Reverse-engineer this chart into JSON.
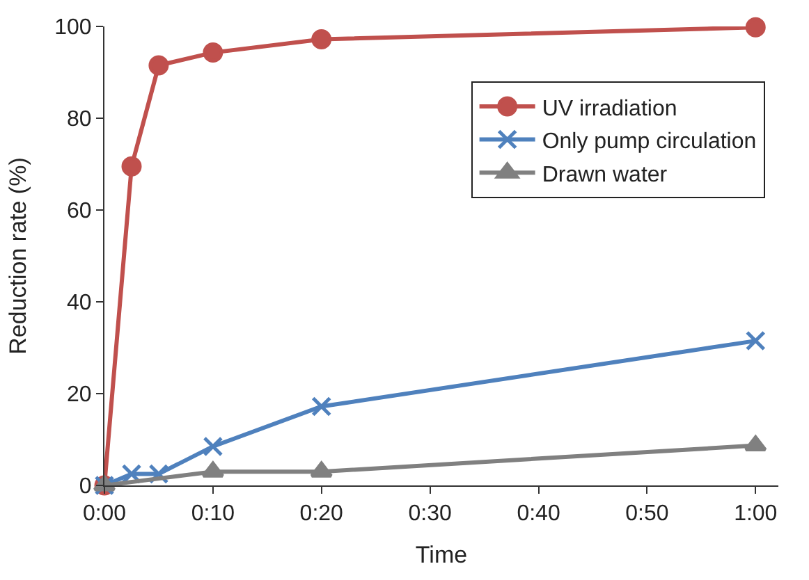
{
  "chart_data": {
    "type": "line",
    "xlabel": "Time",
    "ylabel": "Reduction rate (%)",
    "xlim": [
      0,
      1.035
    ],
    "xticks": [
      {
        "value": 0,
        "label": "0:00"
      },
      {
        "value": 0.1667,
        "label": "0:10"
      },
      {
        "value": 0.3333,
        "label": "0:20"
      },
      {
        "value": 0.5,
        "label": "0:30"
      },
      {
        "value": 0.6667,
        "label": "0:40"
      },
      {
        "value": 0.8333,
        "label": "0:50"
      },
      {
        "value": 1,
        "label": "1:00"
      }
    ],
    "ylim": [
      0,
      100
    ],
    "yticks": [
      0,
      20,
      40,
      60,
      80,
      100
    ],
    "legend": "top right",
    "line_style": "solid",
    "series": [
      {
        "name": "UV irradiation",
        "color": "#c0504d",
        "marker": "circle",
        "x": [
          0,
          0.0417,
          0.0833,
          0.1667,
          0.3333,
          1
        ],
        "values": [
          0,
          69.5,
          91.5,
          94.3,
          97.2,
          99.8
        ]
      },
      {
        "name": "Only pump circulation",
        "color": "#4f81bd",
        "marker": "cross",
        "x": [
          0,
          0.0417,
          0.0833,
          0.1667,
          0.3333,
          1
        ],
        "values": [
          0,
          2.5,
          2.5,
          8.5,
          17.2,
          31.5
        ]
      },
      {
        "name": "Drawn water",
        "color": "#808080",
        "marker": "triangle",
        "x": [
          0,
          0.1667,
          0.3333,
          1
        ],
        "values": [
          0,
          3,
          3,
          8.7
        ]
      }
    ]
  }
}
